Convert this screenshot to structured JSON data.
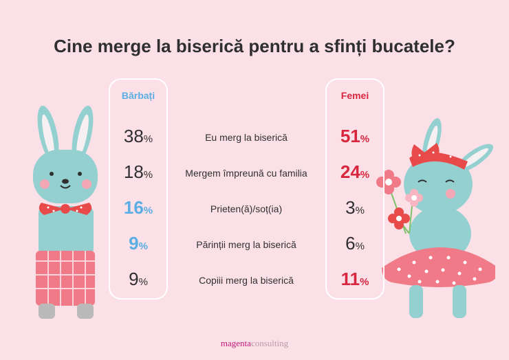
{
  "title": "Cine merge la biserică pentru a sfinți bucatele?",
  "chart_data": {
    "type": "table",
    "columns": [
      "Bărbați",
      "Femei"
    ],
    "rows": [
      {
        "label": "Eu merg la biserică",
        "men": 38,
        "women": 51
      },
      {
        "label": "Mergem împreună cu familia",
        "men": 18,
        "women": 24
      },
      {
        "label": "Prieten(ă)/soț(ia)",
        "men": 16,
        "women": 3
      },
      {
        "label": "Părinții merg la biserică",
        "men": 9,
        "women": 6
      },
      {
        "label": "Copiii merg la biserică",
        "men": 9,
        "women": 11
      }
    ],
    "unit": "%",
    "men_highlight_color": "#5aaee3",
    "women_highlight_color": "#d7263d",
    "men_highlighted_rows": [
      2,
      3
    ],
    "women_highlighted_rows": [
      0,
      1,
      4
    ]
  },
  "footer": {
    "brand_a": "magenta",
    "brand_b": "consulting"
  }
}
